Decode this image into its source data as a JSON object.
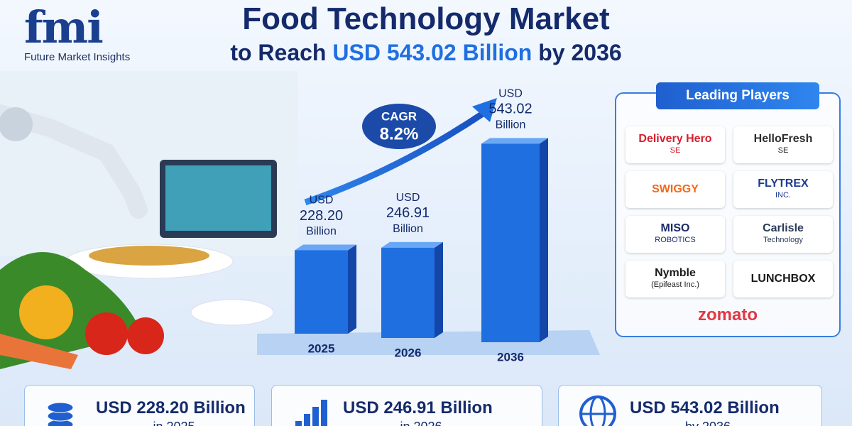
{
  "header": {
    "logo": "fmi",
    "company": "Future Market Insights",
    "title": "Food Technology Market",
    "subtitle_start": "to Reach",
    "subtitle_value": "USD 543.02 Billion",
    "subtitle_end": "by 2036"
  },
  "chart_data": {
    "type": "bar",
    "categories": [
      "2025",
      "2026",
      "2036"
    ],
    "values": [
      228.2,
      246.91,
      543.02
    ],
    "value_labels": [
      "228.20",
      "246.91",
      "543.02"
    ],
    "value_prefix": "USD",
    "value_suffix": "Billion",
    "color": "#1f6fe0",
    "annotation": {
      "text": "CAGR",
      "value_label": "8.2%"
    }
  },
  "players": {
    "heading": "Leading Players",
    "items": [
      {
        "name": "Delivery Hero",
        "sub": "SE",
        "color": "#d81e2c"
      },
      {
        "name": "HelloFresh",
        "sub": "SE",
        "color": "#2d2d2d"
      },
      {
        "name": "SWIGGY",
        "color": "#f26a1b"
      },
      {
        "name": "FLYTREX",
        "sub": "INC.",
        "color": "#1d3b8f"
      },
      {
        "name": "MISO",
        "sub": "ROBOTICS",
        "color": "#1a2a6b"
      },
      {
        "name": "Carlisle",
        "sub": "Technology",
        "color": "#2a3a5a"
      },
      {
        "name": "Nymble",
        "sub": "(Epifeast Inc.)",
        "color": "#1a1a1a"
      },
      {
        "name": "LUNCHBOX",
        "color": "#1a1a1a"
      },
      {
        "name": "zomato",
        "color": "#e23744"
      }
    ]
  },
  "summary": [
    {
      "value": "USD 228.20 Billion",
      "period": "in 2025"
    },
    {
      "value": "USD 246.91 Billion",
      "period": "in 2026"
    },
    {
      "value": "USD 543.02 Billion",
      "period": "by 2036"
    }
  ]
}
